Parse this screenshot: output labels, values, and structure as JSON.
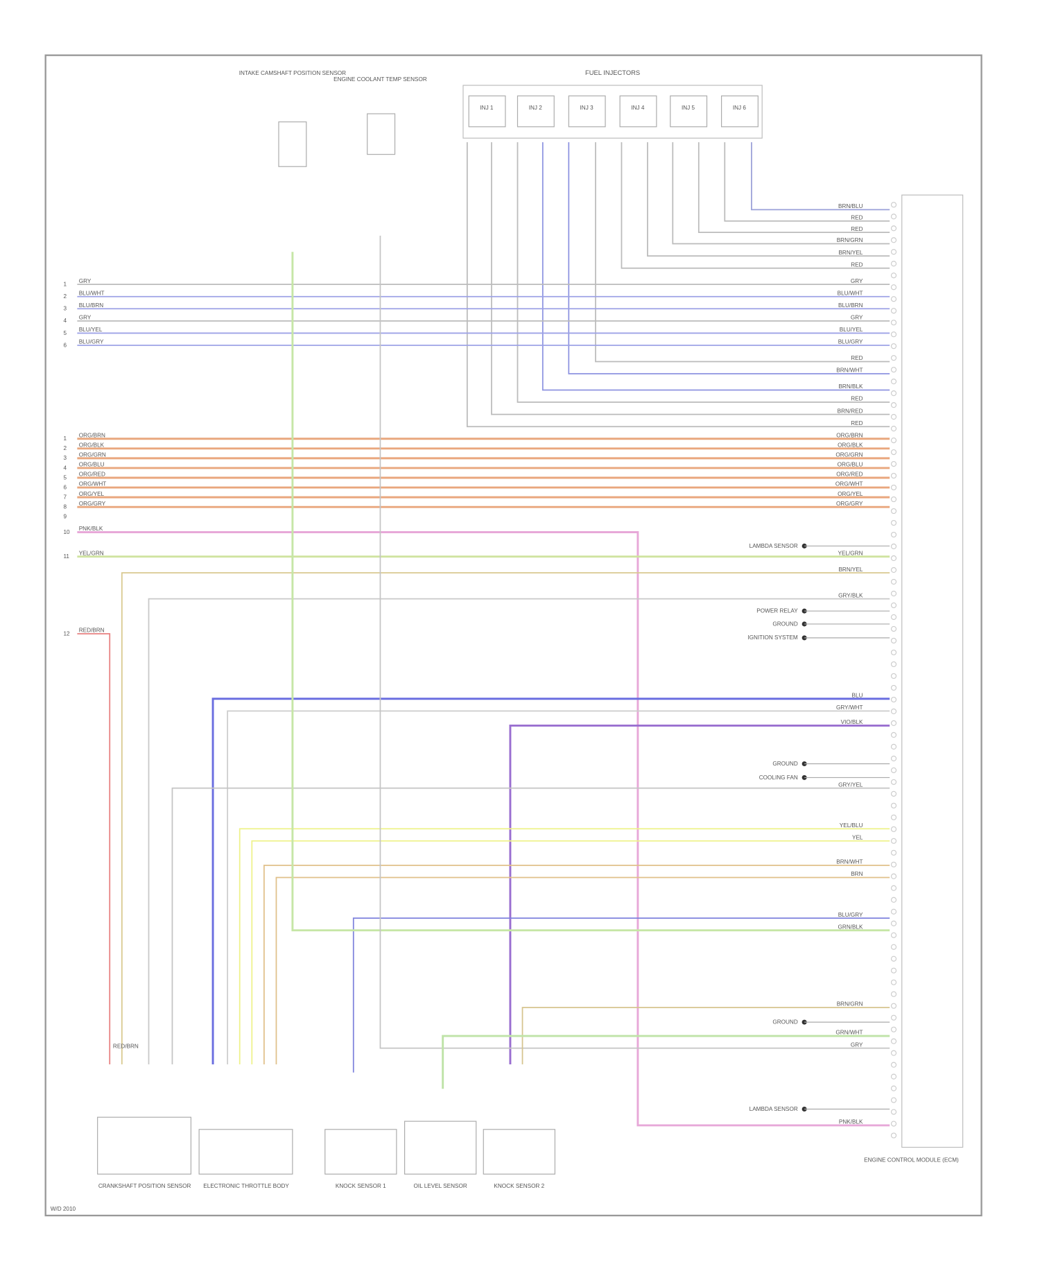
{
  "components": {
    "injectors": "FUEL INJECTORS",
    "sensor_a": "INTAKE CAMSHAFT POSITION SENSOR",
    "sensor_b": "ENGINE COOLANT TEMP SENSOR",
    "ecm": "ENGINE CONTROL MODULE (ECM)",
    "bottom": [
      "CRANKSHAFT POSITION SENSOR",
      "ELECTRONIC THROTTLE BODY",
      "KNOCK SENSOR 1",
      "OIL LEVEL SENSOR",
      "KNOCK SENSOR 2"
    ],
    "injector_names": [
      "INJ 1",
      "INJ 2",
      "INJ 3",
      "INJ 4",
      "INJ 5",
      "INJ 6"
    ],
    "footnote": "W/D 2010"
  },
  "refs": [
    "LAMBDA SENSOR",
    "POWER RELAY",
    "GROUND",
    "IGNITION SYSTEM",
    "GROUND",
    "COOLING FAN",
    "GROUND",
    "LAMBDA SENSOR"
  ],
  "left_pins": [
    "1",
    "2",
    "3",
    "4",
    "5",
    "6",
    "1",
    "2",
    "3",
    "4",
    "5",
    "6",
    "7",
    "8",
    "9",
    "10",
    "11",
    "12"
  ],
  "wires": [
    {
      "label": "BRN/BLU",
      "color": "#9aa0d8"
    },
    {
      "label": "RED",
      "color": "#bbb"
    },
    {
      "label": "RED",
      "color": "#bbb"
    },
    {
      "label": "BRN/GRN",
      "color": "#bbb"
    },
    {
      "label": "BRN/YEL",
      "color": "#bbb"
    },
    {
      "label": "RED",
      "color": "#bbb"
    },
    {
      "label": "RED",
      "color": "#bbb"
    },
    {
      "label": "BRN/WHT",
      "color": "#8d93e0"
    },
    {
      "label": "BRN/BLK",
      "color": "#8d93e0"
    },
    {
      "label": "RED",
      "color": "#bbb"
    },
    {
      "label": "BRN/RED",
      "color": "#bbb"
    },
    {
      "label": "RED",
      "color": "#bbb"
    },
    {
      "label": "GRY",
      "color": "#bbb"
    },
    {
      "label": "BLU/WHT",
      "color": "#9da2e6"
    },
    {
      "label": "BLU/BRN",
      "color": "#9da2e6"
    },
    {
      "label": "GRY",
      "color": "#bbb"
    },
    {
      "label": "BLU/YEL",
      "color": "#9da2e6"
    },
    {
      "label": "BLU/GRY",
      "color": "#9da2e6"
    },
    {
      "label": "ORG/BRN",
      "color": "#e9a77e"
    },
    {
      "label": "ORG/BLK",
      "color": "#e9a77e"
    },
    {
      "label": "ORG/GRN",
      "color": "#e9a77e"
    },
    {
      "label": "ORG/BLU",
      "color": "#e9a77e"
    },
    {
      "label": "ORG/RED",
      "color": "#e9a77e"
    },
    {
      "label": "ORG/WHT",
      "color": "#e9a77e"
    },
    {
      "label": "ORG/YEL",
      "color": "#e9a77e"
    },
    {
      "label": "ORG/GRY",
      "color": "#e9a77e"
    },
    {
      "label": "PNK/BLK",
      "color": "#e7a8d8"
    },
    {
      "label": "YEL/GRN",
      "color": "#cfe3a0"
    },
    {
      "label": "BRN/YEL",
      "color": "#d9c98f"
    },
    {
      "label": "GRY/BLK",
      "color": "#c8c8c8"
    },
    {
      "label": "RED/BRN",
      "color": "#e88080"
    },
    {
      "label": "BLU",
      "color": "#6a6ee0"
    },
    {
      "label": "GRY/WHT",
      "color": "#ccc"
    },
    {
      "label": "VIO/BLK",
      "color": "#9a6fd0"
    },
    {
      "label": "GRY/YEL",
      "color": "#c4c4c4"
    },
    {
      "label": "YEL/BLU",
      "color": "#eef28a"
    },
    {
      "label": "YEL",
      "color": "#eef28a"
    },
    {
      "label": "BRN/WHT",
      "color": "#e0c08a"
    },
    {
      "label": "BRN",
      "color": "#e0c08a"
    },
    {
      "label": "BLU/GRY",
      "color": "#7f83dd"
    },
    {
      "label": "GRN/BLK",
      "color": "#c6e6a6"
    },
    {
      "label": "GRY",
      "color": "#c4c4c4"
    },
    {
      "label": "BRN/GRN",
      "color": "#d6c48e"
    },
    {
      "label": "GRN/WHT",
      "color": "#bfe3a8"
    }
  ]
}
